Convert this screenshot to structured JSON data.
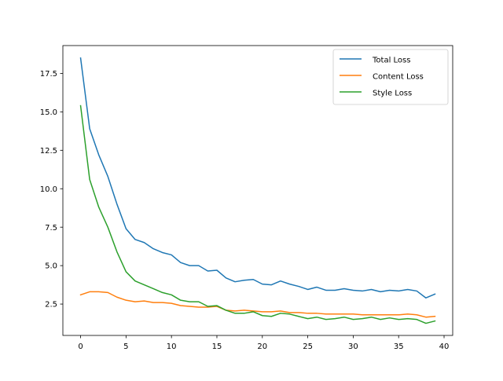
{
  "chart_data": {
    "type": "line",
    "title": "",
    "xlabel": "",
    "ylabel": "",
    "xlim": [
      -1.95,
      40.95
    ],
    "ylim": [
      0.46,
      19.31
    ],
    "xticks": [
      0,
      5,
      10,
      15,
      20,
      25,
      30,
      35,
      40
    ],
    "xtick_labels": [
      "0",
      "5",
      "10",
      "15",
      "20",
      "25",
      "30",
      "35",
      "40"
    ],
    "yticks": [
      2.5,
      5.0,
      7.5,
      10.0,
      12.5,
      15.0,
      17.5
    ],
    "ytick_labels": [
      "2.5",
      "5.0",
      "7.5",
      "10.0",
      "12.5",
      "15.0",
      "17.5"
    ],
    "grid": false,
    "legend_position": "top-right",
    "x": [
      0,
      1,
      2,
      3,
      4,
      5,
      6,
      7,
      8,
      9,
      10,
      11,
      12,
      13,
      14,
      15,
      16,
      17,
      18,
      19,
      20,
      21,
      22,
      23,
      24,
      25,
      26,
      27,
      28,
      29,
      30,
      31,
      32,
      33,
      34,
      35,
      36,
      37,
      38,
      39
    ],
    "series": [
      {
        "name": "Total Loss",
        "color": "#1f77b4",
        "values": [
          18.5,
          13.9,
          12.2,
          10.8,
          9.0,
          7.4,
          6.7,
          6.5,
          6.1,
          5.85,
          5.7,
          5.2,
          5.0,
          5.0,
          4.65,
          4.7,
          4.2,
          3.95,
          4.05,
          4.1,
          3.8,
          3.75,
          4.0,
          3.8,
          3.65,
          3.45,
          3.6,
          3.4,
          3.4,
          3.5,
          3.4,
          3.35,
          3.45,
          3.3,
          3.4,
          3.35,
          3.45,
          3.35,
          2.9,
          3.15
        ]
      },
      {
        "name": "Content Loss",
        "color": "#ff7f0e",
        "values": [
          3.1,
          3.3,
          3.3,
          3.25,
          2.95,
          2.75,
          2.65,
          2.7,
          2.6,
          2.6,
          2.55,
          2.4,
          2.35,
          2.3,
          2.3,
          2.35,
          2.1,
          2.05,
          2.1,
          2.05,
          2.0,
          2.0,
          2.05,
          1.95,
          1.95,
          1.9,
          1.9,
          1.85,
          1.85,
          1.85,
          1.85,
          1.8,
          1.8,
          1.8,
          1.8,
          1.8,
          1.85,
          1.8,
          1.65,
          1.7
        ]
      },
      {
        "name": "Style Loss",
        "color": "#2ca02c",
        "values": [
          15.4,
          10.6,
          8.8,
          7.5,
          5.9,
          4.6,
          4.0,
          3.75,
          3.5,
          3.25,
          3.1,
          2.75,
          2.65,
          2.65,
          2.35,
          2.4,
          2.1,
          1.9,
          1.9,
          2.0,
          1.75,
          1.7,
          1.9,
          1.85,
          1.7,
          1.55,
          1.65,
          1.5,
          1.55,
          1.65,
          1.5,
          1.55,
          1.65,
          1.5,
          1.6,
          1.5,
          1.55,
          1.5,
          1.25,
          1.4
        ]
      }
    ]
  }
}
